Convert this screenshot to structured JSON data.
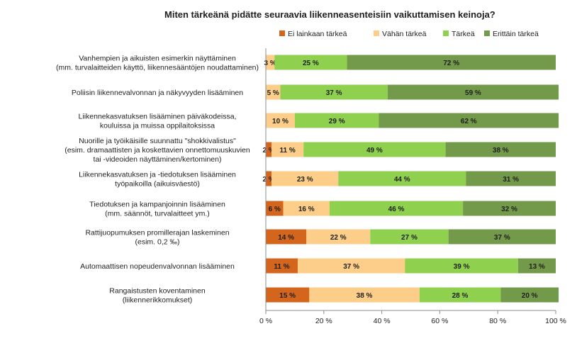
{
  "chart_data": {
    "type": "bar",
    "orientation": "horizontal-stacked-100",
    "title": "Miten tärkeänä pidätte seuraavia liikenneasenteisiin vaikuttamisen keinoja?",
    "categories": [
      [
        "Vanhempien ja aikuisten esimerkin näyttäminen",
        "(mm. turvalaitteiden käyttö, liikennesääntöjen noudattaminen)"
      ],
      [
        "Poliisin liikennevalvonnan ja näkyvyyden lisääminen"
      ],
      [
        "Liikennekasvatuksen lisääminen päiväkodeissa,",
        "kouluissa ja muissa oppilaitoksissa"
      ],
      [
        "Nuorille ja työikäisille suunnattu \"shokkivalistus\"",
        "(esim. dramaattisten ja koskettavien onnettomuuskuvien",
        "tai -videoiden näyttäminen/kertominen)"
      ],
      [
        "Liikennekasvatuksen ja -tiedotuksen lisääminen",
        "työpaikoilla (aikuisväestö)"
      ],
      [
        "Tiedotuksen ja kampanjoinnin lisääminen",
        "(mm. säännöt, turvalaitteet ym.)"
      ],
      [
        "Rattijuopumuksen promillerajan laskeminen",
        "(esim. 0,2 ‰)"
      ],
      [
        "Automaattisen nopeudenvalvonnan lisääminen"
      ],
      [
        "Rangaistusten koventaminen",
        "(liikennerikkomukset)"
      ]
    ],
    "series": [
      {
        "name": "Ei lainkaan tärkeä",
        "color": "#d3661c",
        "values": [
          0,
          0,
          0,
          2,
          2,
          6,
          14,
          11,
          15
        ],
        "labels": [
          "",
          "",
          "",
          "2 %",
          "2 %",
          "6 %",
          "14 %",
          "11 %",
          "15 %"
        ]
      },
      {
        "name": "Vähän tärkeä",
        "color": "#fcce8a",
        "values": [
          3,
          5,
          10,
          11,
          23,
          16,
          22,
          37,
          38
        ],
        "labels": [
          "3 %",
          "5 %",
          "10 %",
          "11 %",
          "23 %",
          "16 %",
          "22 %",
          "37 %",
          "38 %"
        ]
      },
      {
        "name": "Tärkeä",
        "color": "#8fd14f",
        "values": [
          25,
          37,
          29,
          49,
          44,
          46,
          27,
          39,
          28
        ],
        "labels": [
          "25 %",
          "37 %",
          "29 %",
          "49 %",
          "44 %",
          "46 %",
          "27 %",
          "39 %",
          "28 %"
        ]
      },
      {
        "name": "Erittäin tärkeä",
        "color": "#739a4a",
        "values": [
          72,
          59,
          62,
          38,
          31,
          32,
          37,
          13,
          20
        ],
        "labels": [
          "72 %",
          "59 %",
          "62 %",
          "38 %",
          "31 %",
          "32 %",
          "37 %",
          "13 %",
          "20 %"
        ]
      }
    ],
    "xlim": [
      0,
      100
    ],
    "x_ticks": [
      0,
      20,
      40,
      60,
      80,
      100
    ],
    "x_tick_labels": [
      "0 %",
      "20 %",
      "40 %",
      "60 %",
      "80 %",
      "100 %"
    ],
    "xlabel": "",
    "ylabel": "",
    "grid": false,
    "legend_position": "top"
  }
}
